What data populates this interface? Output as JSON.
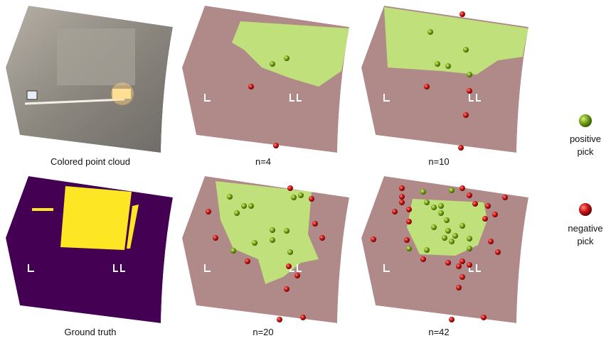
{
  "panels": [
    {
      "caption": "Colored point cloud"
    },
    {
      "caption": "n=4"
    },
    {
      "caption": "n=10"
    },
    {
      "caption": "Ground truth"
    },
    {
      "caption": "n=20"
    },
    {
      "caption": "n=42"
    }
  ],
  "legend": [
    {
      "lines": [
        "positive",
        "pick"
      ]
    },
    {
      "lines": [
        "negative",
        "pick"
      ]
    }
  ]
}
